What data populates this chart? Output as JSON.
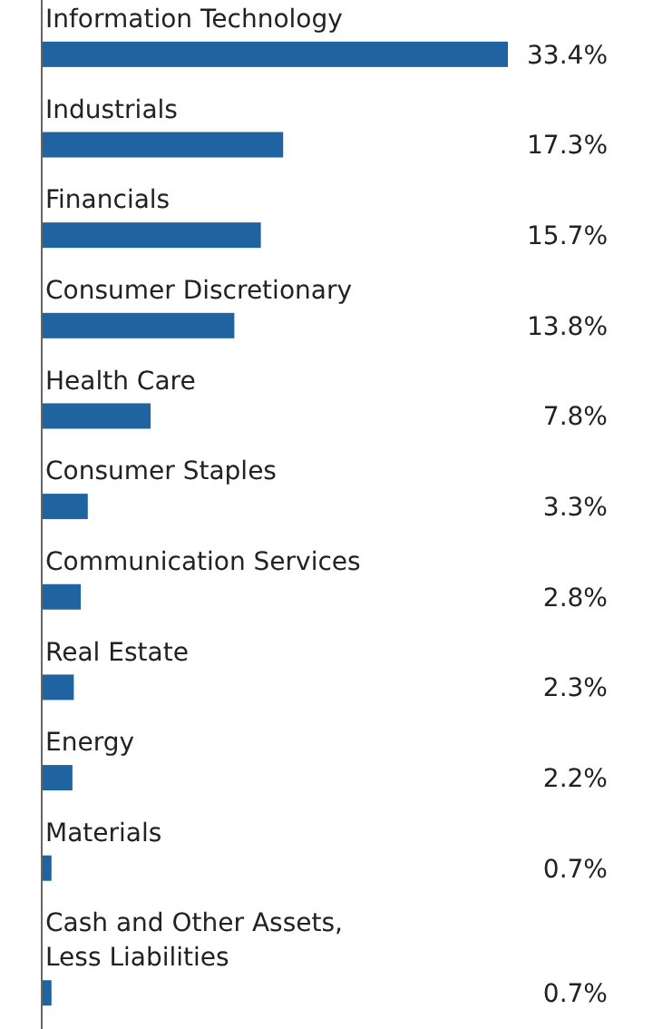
{
  "chart_data": {
    "type": "bar",
    "orientation": "horizontal",
    "categories": [
      "Information Technology",
      "Industrials",
      "Financials",
      "Consumer Discretionary",
      "Health Care",
      "Consumer Staples",
      "Communication Services",
      "Real Estate",
      "Energy",
      "Materials",
      "Cash and Other Assets, Less Liabilities"
    ],
    "values": [
      33.4,
      17.3,
      15.7,
      13.8,
      7.8,
      3.3,
      2.8,
      2.3,
      2.2,
      0.7,
      0.7
    ],
    "value_labels": [
      "33.4%",
      "17.3%",
      "15.7%",
      "13.8%",
      "7.8%",
      "3.3%",
      "2.8%",
      "2.3%",
      "2.2%",
      "0.7%",
      "0.7%"
    ],
    "color": "#1f64a0"
  }
}
